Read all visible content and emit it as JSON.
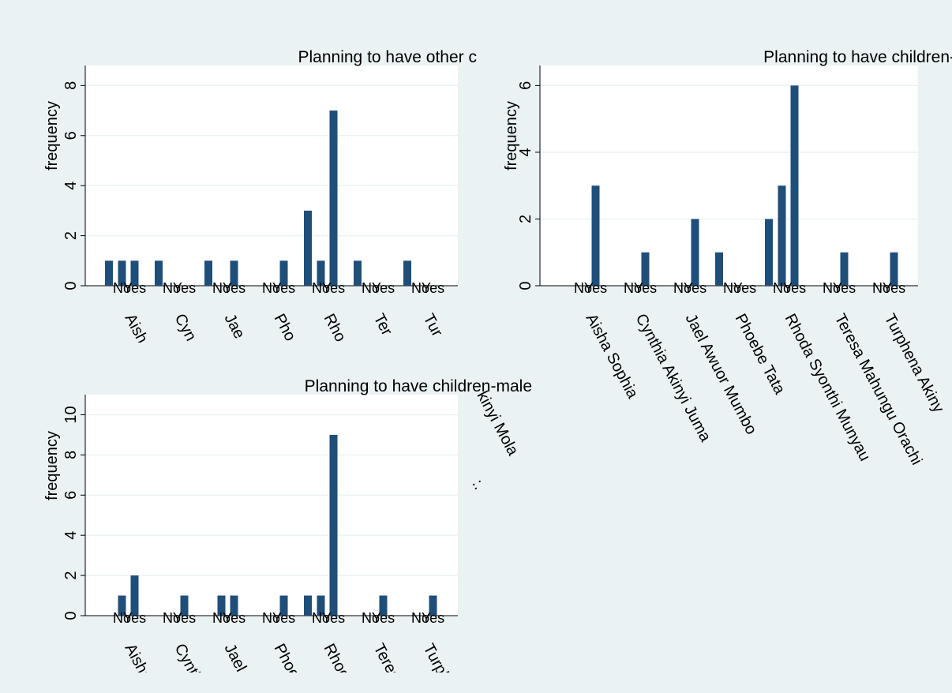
{
  "chart_data": [
    {
      "type": "bar",
      "title": "Planning to have other c",
      "ylabel": "frequency",
      "ylim": [
        0,
        8.8
      ],
      "yticks": [
        0,
        2,
        4,
        6,
        8
      ],
      "grid": true,
      "bar_color": "#1f4e79",
      "groups": [
        "Aish",
        "Cyn",
        "Jae",
        "Pho",
        "Rho",
        "Ter",
        "Tur"
      ],
      "response_labels": [
        "No",
        "Yes"
      ],
      "bars": [
        {
          "group": 0,
          "response": "na",
          "value": 1
        },
        {
          "group": 0,
          "response": "No",
          "value": 1
        },
        {
          "group": 0,
          "response": "Yes",
          "value": 1
        },
        {
          "group": 1,
          "response": "na",
          "value": 1
        },
        {
          "group": 2,
          "response": "na",
          "value": 1
        },
        {
          "group": 2,
          "response": "Yes",
          "value": 1
        },
        {
          "group": 3,
          "response": "Yes",
          "value": 1
        },
        {
          "group": 4,
          "response": "na",
          "value": 3
        },
        {
          "group": 4,
          "response": "No",
          "value": 1
        },
        {
          "group": 4,
          "response": "Yes",
          "value": 7
        },
        {
          "group": 5,
          "response": "na",
          "value": 1
        },
        {
          "group": 6,
          "response": "na",
          "value": 1
        }
      ]
    },
    {
      "type": "bar",
      "title": "Planning to have children-",
      "ylabel": "frequency",
      "ylim": [
        0,
        6.6
      ],
      "yticks": [
        0,
        2,
        4,
        6
      ],
      "grid": true,
      "bar_color": "#1f4e79",
      "groups": [
        "Aisha Sophia",
        "Cynthia Akinyi Juma",
        "Jael Awuor Mumbo",
        "Phoebe Tata",
        "Rhoda Syonthi Munyau",
        "Teresa Mahungu Orachi",
        "Turphena Akiny"
      ],
      "response_labels": [
        "No",
        "Yes"
      ],
      "bars": [
        {
          "group": 0,
          "response": "Yes",
          "value": 3
        },
        {
          "group": 1,
          "response": "Yes",
          "value": 1
        },
        {
          "group": 2,
          "response": "Yes",
          "value": 2
        },
        {
          "group": 3,
          "response": "na",
          "value": 1
        },
        {
          "group": 4,
          "response": "na",
          "value": 2
        },
        {
          "group": 4,
          "response": "No",
          "value": 3
        },
        {
          "group": 4,
          "response": "Yes",
          "value": 6
        },
        {
          "group": 5,
          "response": "Yes",
          "value": 1
        },
        {
          "group": 6,
          "response": "Yes",
          "value": 1
        }
      ]
    },
    {
      "type": "bar",
      "title": "Planning to have children-male",
      "ylabel": "frequency",
      "ylim": [
        0,
        11
      ],
      "yticks": [
        0,
        2,
        4,
        6,
        8,
        10
      ],
      "grid": true,
      "bar_color": "#1f4e79",
      "groups": [
        "Aisha",
        "Cynthi",
        "Jael A",
        "Phoeb",
        "Rhoda",
        "Teresa",
        "Turph"
      ],
      "response_labels": [
        "No",
        "Yes"
      ],
      "bars": [
        {
          "group": 0,
          "response": "No",
          "value": 1
        },
        {
          "group": 0,
          "response": "Yes",
          "value": 2
        },
        {
          "group": 1,
          "response": "Yes",
          "value": 1
        },
        {
          "group": 2,
          "response": "No",
          "value": 1
        },
        {
          "group": 2,
          "response": "Yes",
          "value": 1
        },
        {
          "group": 3,
          "response": "Yes",
          "value": 1
        },
        {
          "group": 4,
          "response": "na",
          "value": 1
        },
        {
          "group": 4,
          "response": "No",
          "value": 1
        },
        {
          "group": 4,
          "response": "Yes",
          "value": 9
        },
        {
          "group": 5,
          "response": "Yes",
          "value": 1
        },
        {
          "group": 6,
          "response": "Yes",
          "value": 1
        }
      ]
    }
  ],
  "overlap_fragments": {
    "text_a": "kinyi Mola",
    "text_b": ":."
  }
}
